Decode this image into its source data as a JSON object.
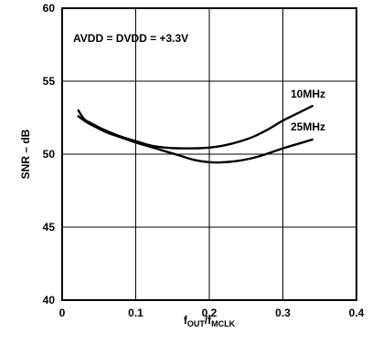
{
  "chart_data": {
    "type": "line",
    "title": "",
    "xlabel": {
      "main": "f",
      "sub_main": "OUT",
      "sep": "/f",
      "sub_sep": "MCLK"
    },
    "ylabel": "SNR – dB",
    "xlim": [
      0,
      0.4
    ],
    "ylim": [
      40,
      60
    ],
    "xticks": [
      "0",
      "0.1",
      "0.2",
      "0.3",
      "0.4"
    ],
    "yticks": [
      "40",
      "45",
      "50",
      "55",
      "60"
    ],
    "grid": true,
    "annotation": "AVDD = DVDD = +3.3V",
    "series": [
      {
        "name": "10MHz",
        "x": [
          0.022,
          0.03,
          0.04,
          0.06,
          0.08,
          0.1,
          0.12,
          0.14,
          0.16,
          0.18,
          0.2,
          0.22,
          0.24,
          0.26,
          0.28,
          0.3,
          0.32,
          0.34
        ],
        "y": [
          53.0,
          52.4,
          52.1,
          51.6,
          51.2,
          50.9,
          50.6,
          50.45,
          50.4,
          50.4,
          50.45,
          50.6,
          50.85,
          51.2,
          51.7,
          52.3,
          52.8,
          53.3
        ]
      },
      {
        "name": "25MHz",
        "x": [
          0.022,
          0.03,
          0.04,
          0.06,
          0.08,
          0.1,
          0.12,
          0.14,
          0.16,
          0.18,
          0.2,
          0.22,
          0.24,
          0.26,
          0.28,
          0.3,
          0.32,
          0.34
        ],
        "y": [
          52.6,
          52.3,
          52.0,
          51.5,
          51.15,
          50.8,
          50.5,
          50.2,
          49.9,
          49.6,
          49.45,
          49.45,
          49.55,
          49.75,
          50.05,
          50.4,
          50.7,
          51.0
        ]
      }
    ]
  }
}
